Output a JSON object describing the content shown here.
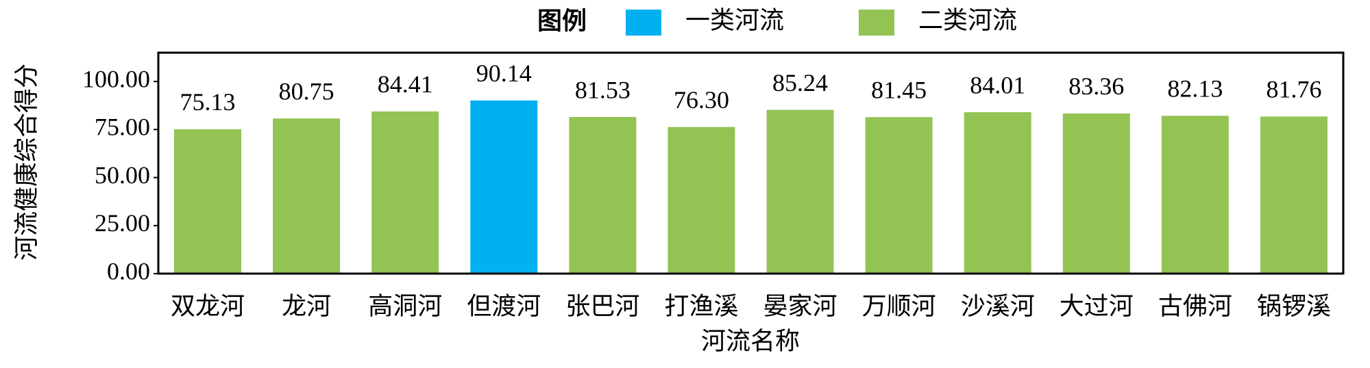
{
  "chart_data": {
    "type": "bar",
    "legend_title": "图例",
    "x_label": "河流名称",
    "y_label": "河流健康综合得分",
    "categories": [
      "双龙河",
      "龙河",
      "高洞河",
      "但渡河",
      "张巴河",
      "打渔溪",
      "晏家河",
      "万顺河",
      "沙溪河",
      "大过河",
      "古佛河",
      "锅锣溪"
    ],
    "series": [
      {
        "name": "一类河流",
        "color": "#00b0f0",
        "values": [
          null,
          null,
          null,
          90.14,
          null,
          null,
          null,
          null,
          null,
          null,
          null,
          null
        ],
        "value_labels": [
          null,
          null,
          null,
          "90.14",
          null,
          null,
          null,
          null,
          null,
          null,
          null,
          null
        ]
      },
      {
        "name": "二类河流",
        "color": "#92c353",
        "values": [
          75.13,
          80.75,
          84.41,
          null,
          81.53,
          76.3,
          85.24,
          81.45,
          84.01,
          83.36,
          82.13,
          81.76
        ],
        "value_labels": [
          "75.13",
          "80.75",
          "84.41",
          null,
          "81.53",
          "76.30",
          "85.24",
          "81.45",
          "84.01",
          "83.36",
          "82.13",
          "81.76"
        ]
      }
    ],
    "ylim": [
      0,
      115
    ],
    "yticks": [
      {
        "value": 0,
        "label": "0.00"
      },
      {
        "value": 25,
        "label": "25.00"
      },
      {
        "value": 50,
        "label": "50.00"
      },
      {
        "value": 75,
        "label": "75.00"
      },
      {
        "value": 100,
        "label": "100.00"
      }
    ],
    "legend_position": "top"
  }
}
